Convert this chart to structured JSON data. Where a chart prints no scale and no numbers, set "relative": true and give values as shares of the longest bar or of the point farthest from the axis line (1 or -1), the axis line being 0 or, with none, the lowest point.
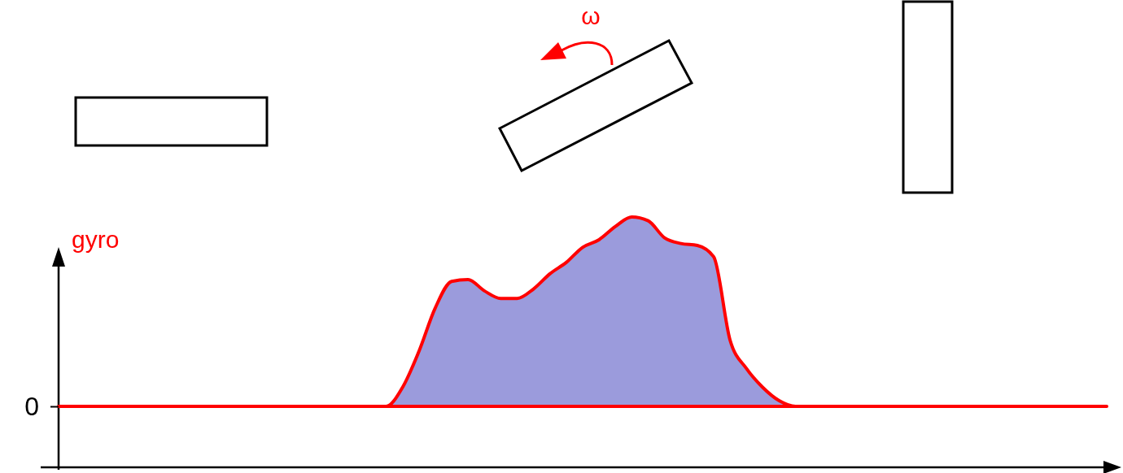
{
  "chart_data": {
    "type": "area",
    "relative": true,
    "ylabel": "gyro",
    "categories": [
      null,
      null,
      null,
      null,
      null,
      null,
      null,
      null,
      null,
      null,
      null,
      null,
      null,
      null,
      null,
      null,
      null,
      null,
      null,
      null,
      null,
      null,
      null,
      null,
      null,
      null,
      null,
      null,
      null,
      null,
      null,
      null,
      null,
      null,
      null,
      null,
      null,
      null,
      null,
      null,
      null,
      null,
      null,
      null,
      null,
      null,
      null,
      null,
      null,
      null,
      null,
      null,
      null,
      null,
      null,
      null,
      null,
      null,
      null,
      null,
      null,
      null,
      null,
      null,
      null
    ],
    "color": "#9b9bdc",
    "values": [
      0,
      0,
      0,
      0,
      0,
      0,
      0,
      0,
      0,
      0,
      0,
      0,
      0,
      0,
      0,
      0,
      0,
      0,
      0,
      0,
      0,
      0.1,
      0.29,
      0.52,
      0.66,
      0.67,
      0.61,
      0.57,
      0.57,
      0.62,
      0.7,
      0.76,
      0.84,
      0.88,
      0.95,
      1,
      0.98,
      0.89,
      0.86,
      0.85,
      0.79,
      0.35,
      0.2,
      0.1,
      0.03,
      0,
      0,
      0,
      0,
      0,
      0,
      0,
      0,
      0,
      0,
      0,
      0,
      0,
      0,
      0,
      0,
      0,
      0,
      0,
      0
    ],
    "annotations": [
      "0",
      "ω"
    ]
  }
}
